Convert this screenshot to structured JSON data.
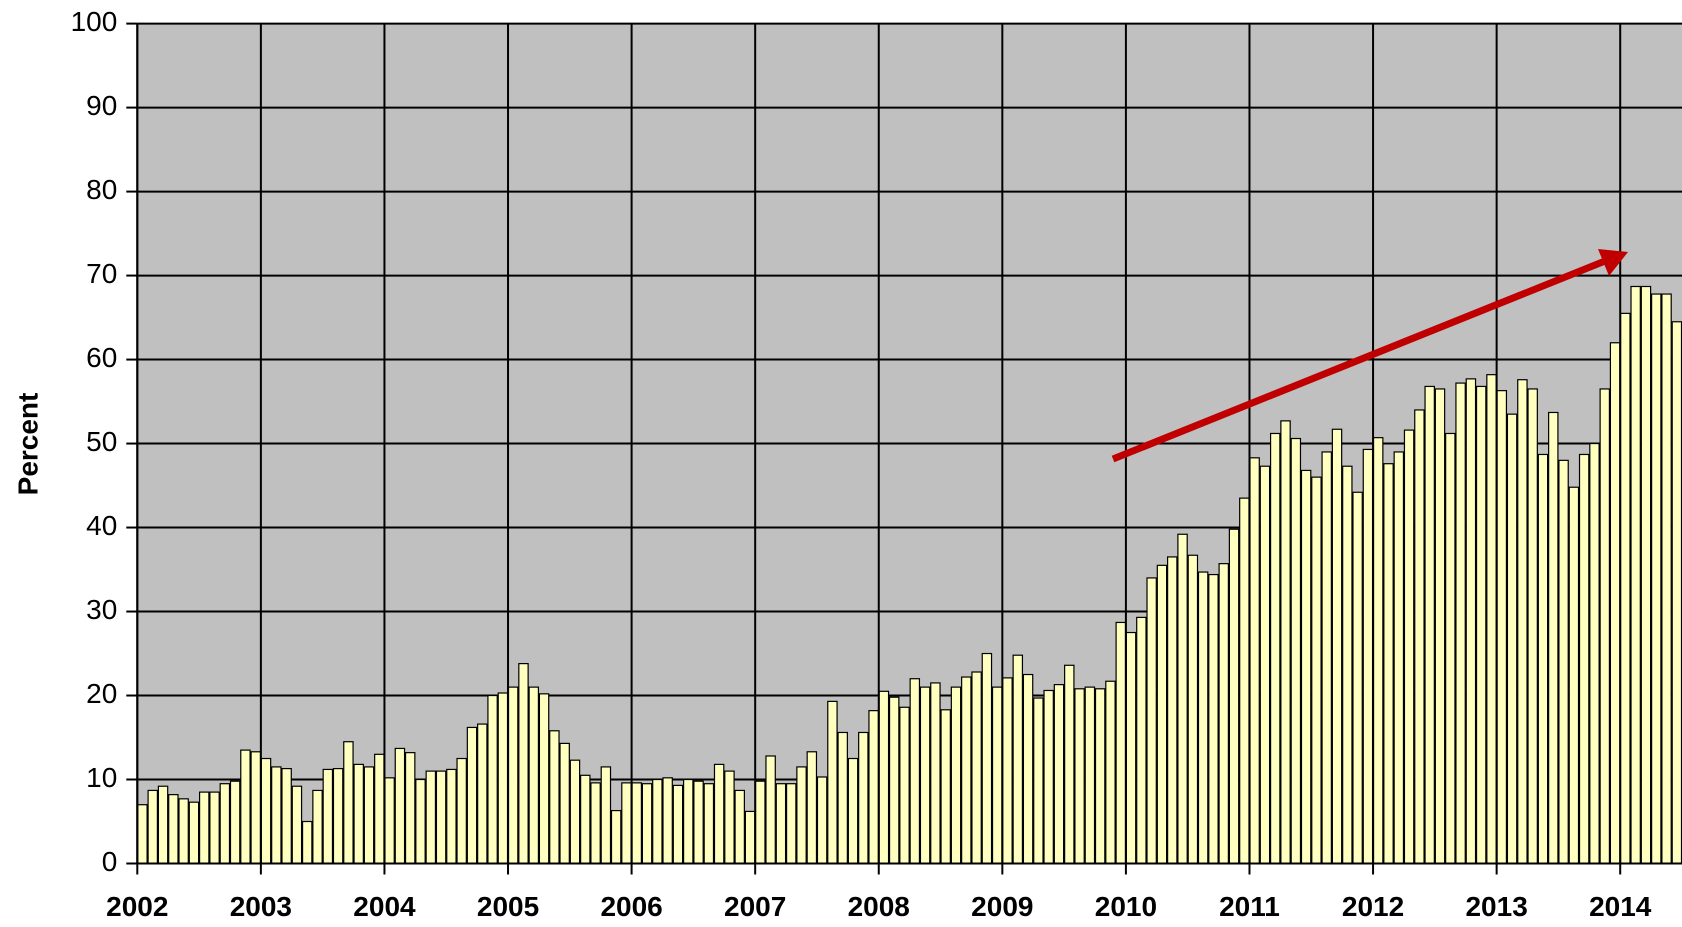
{
  "chart_data": {
    "type": "bar",
    "ylabel": "Percent",
    "color": "#ffffc0",
    "grid": true,
    "ylim": [
      0,
      100
    ],
    "yticks": [
      0,
      10,
      20,
      30,
      40,
      50,
      60,
      70,
      80,
      90,
      100
    ],
    "categories": [
      "2002",
      null,
      null,
      null,
      null,
      null,
      null,
      null,
      null,
      null,
      null,
      null,
      "2003",
      null,
      null,
      null,
      null,
      null,
      null,
      null,
      null,
      null,
      null,
      null,
      "2004",
      null,
      null,
      null,
      null,
      null,
      null,
      null,
      null,
      null,
      null,
      null,
      "2005",
      null,
      null,
      null,
      null,
      null,
      null,
      null,
      null,
      null,
      null,
      null,
      "2006",
      null,
      null,
      null,
      null,
      null,
      null,
      null,
      null,
      null,
      null,
      null,
      "2007",
      null,
      null,
      null,
      null,
      null,
      null,
      null,
      null,
      null,
      null,
      null,
      "2008",
      null,
      null,
      null,
      null,
      null,
      null,
      null,
      null,
      null,
      null,
      null,
      "2009",
      null,
      null,
      null,
      null,
      null,
      null,
      null,
      null,
      null,
      null,
      null,
      "2010",
      null,
      null,
      null,
      null,
      null,
      null,
      null,
      null,
      null,
      null,
      null,
      "2011",
      null,
      null,
      null,
      null,
      null,
      null,
      null,
      null,
      null,
      null,
      null,
      "2012",
      null,
      null,
      null,
      null,
      null,
      null,
      null,
      null,
      null,
      null,
      null,
      "2013",
      null,
      null,
      null,
      null,
      null,
      null,
      null,
      null,
      null,
      null,
      null,
      "2014",
      null,
      null,
      null,
      null,
      null
    ],
    "values": [
      7,
      8.7,
      9.2,
      8.2,
      7.7,
      7.3,
      8.5,
      8.5,
      9.5,
      9.8,
      13.5,
      13.3,
      12.5,
      11.5,
      11.3,
      9.2,
      5,
      8.7,
      11.2,
      11.3,
      14.5,
      11.8,
      11.5,
      13,
      10.2,
      13.7,
      13.2,
      10,
      11,
      11,
      11.2,
      12.5,
      16.2,
      16.6,
      20,
      20.3,
      21,
      23.8,
      21,
      20.2,
      15.8,
      14.3,
      12.3,
      10.5,
      9.6,
      11.5,
      6.3,
      9.6,
      9.6,
      9.5,
      10,
      10.2,
      9.3,
      10,
      9.8,
      9.5,
      11.8,
      11,
      8.7,
      6.2,
      9.8,
      12.8,
      9.5,
      9.5,
      11.5,
      13.3,
      10.3,
      19.3,
      15.6,
      12.5,
      15.6,
      18.2,
      20.5,
      19.8,
      18.6,
      22,
      21,
      21.5,
      18.3,
      21,
      22.2,
      22.8,
      25,
      21,
      22.1,
      24.8,
      22.5,
      19.7,
      20.6,
      21.3,
      23.6,
      20.8,
      21,
      20.8,
      21.7,
      28.7,
      27.5,
      29.3,
      34,
      35.5,
      36.5,
      39.2,
      36.7,
      34.7,
      34.4,
      35.7,
      39.8,
      43.5,
      48.3,
      47.3,
      51.2,
      52.7,
      50.6,
      46.8,
      46,
      49,
      51.7,
      47.3,
      44.2,
      49.3,
      50.7,
      47.6,
      49,
      51.6,
      54,
      56.8,
      56.5,
      51.2,
      57.2,
      57.7,
      56.8,
      58.2,
      56.3,
      53.5,
      57.6,
      56.5,
      48.7,
      53.7,
      48,
      44.8,
      48.7,
      50,
      56.5,
      62,
      65.5,
      68.7,
      68.7,
      67.8,
      67.8,
      64.5
    ]
  }
}
